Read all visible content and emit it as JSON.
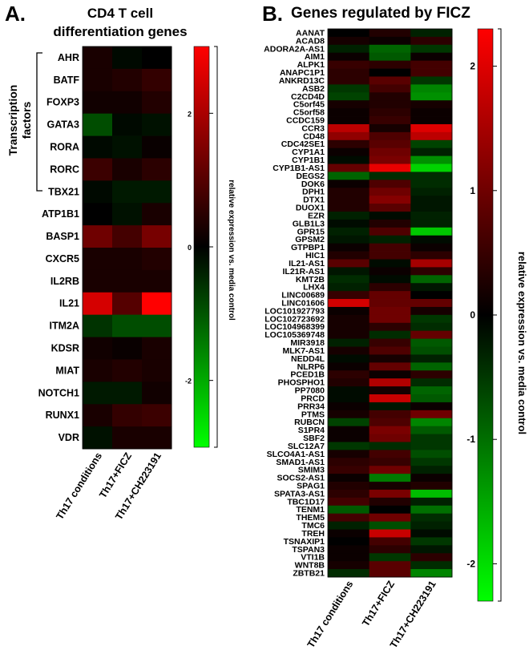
{
  "panel_a": {
    "letter": "A.",
    "title_lines": [
      "CD4 T cell",
      "differentiation genes"
    ],
    "group_label_lines": [
      "Transcription",
      "factors"
    ],
    "colorbar_label": "relative expression vs. media control"
  },
  "panel_b": {
    "letter": "B.",
    "title": "Genes regulated by FICZ",
    "colorbar_label": "relative expression vs. media control"
  },
  "colors": {
    "high": "#ff0000",
    "mid": "#000000",
    "low": "#00ff00"
  },
  "chart_data": [
    {
      "type": "heatmap",
      "title": "CD4 T cell differentiation genes",
      "columns": [
        "Th17 conditions",
        "Th17+FICZ",
        "Th17+CH223191"
      ],
      "rows": [
        "AHR",
        "BATF",
        "FOXP3",
        "GATA3",
        "RORA",
        "RORC",
        "TBX21",
        "ATP1B1",
        "BASP1",
        "CXCR5",
        "IL2RB",
        "IL21",
        "ITM2A",
        "KDSR",
        "MIAT",
        "NOTCH1",
        "RUNX1",
        "VDR"
      ],
      "values": [
        [
          0.3,
          -0.1,
          0.0
        ],
        [
          0.3,
          0.4,
          0.6
        ],
        [
          0.2,
          0.2,
          0.4
        ],
        [
          -0.9,
          -0.1,
          -0.2
        ],
        [
          -0.1,
          -0.2,
          0.1
        ],
        [
          0.7,
          0.3,
          0.5
        ],
        [
          -0.1,
          -0.3,
          -0.3
        ],
        [
          0.0,
          -0.2,
          0.3
        ],
        [
          1.3,
          0.8,
          1.4
        ],
        [
          0.3,
          0.3,
          0.4
        ],
        [
          0.3,
          0.3,
          0.3
        ],
        [
          2.5,
          1.0,
          3.0
        ],
        [
          -0.6,
          -0.9,
          -0.9
        ],
        [
          0.2,
          0.1,
          0.3
        ],
        [
          0.3,
          0.4,
          0.3
        ],
        [
          -0.3,
          -0.3,
          0.2
        ],
        [
          0.3,
          0.6,
          0.7
        ],
        [
          -0.2,
          0.3,
          0.3
        ]
      ],
      "colorbar": {
        "label": "relative expression vs. media control",
        "range": [
          -3,
          3
        ],
        "ticks": [
          2,
          0,
          -2
        ]
      }
    },
    {
      "type": "heatmap",
      "title": "Genes regulated by FICZ",
      "columns": [
        "Th17 conditions",
        "Th17+FICZ",
        "Th17+CH223191"
      ],
      "rows": [
        "AANAT",
        "ACAD8",
        "ADORA2A-AS1",
        "AIM1",
        "ALPK1",
        "ANAPC1P1",
        "ANKRD13C",
        "ASB2",
        "C2CD4D",
        "C5orf45",
        "C5orf58",
        "CCDC159",
        "CCR3",
        "CD48",
        "CDC42SE1",
        "CYP1A1",
        "CYP1B1",
        "CYP1B1-AS1",
        "DEGS2",
        "DOK6",
        "DPH1",
        "DTX1",
        "DUOX1",
        "EZR",
        "GLB1L3",
        "GPR15",
        "GPSM2",
        "GTPBP1",
        "HIC1",
        "IL21-AS1",
        "IL21R-AS1",
        "KMT2B",
        "LHX4",
        "LINC00689",
        "LINC01606",
        "LOC101927793",
        "LOC102723692",
        "LOC104968399",
        "LOC105369748",
        "MIR3918",
        "MLK7-AS1",
        "NEDD4L",
        "NLRP6",
        "PCED1B",
        "PHOSPHO1",
        "PP7080",
        "PRCD",
        "PRR34",
        "PTMS",
        "RUBCN",
        "S1PR4",
        "SBF2",
        "SLC12A7",
        "SLCO4A1-AS1",
        "SMAD1-AS1",
        "SMIM3",
        "SOCS2-AS1",
        "SPAG1",
        "SPATA3-AS1",
        "TBC1D17",
        "TENM1",
        "THEM5",
        "TMC6",
        "TREH",
        "TSNAXIP1",
        "TSPAN3",
        "VTI1B",
        "WNT8B",
        "ZBTB21"
      ],
      "values": [
        [
          0.0,
          0.3,
          -0.3
        ],
        [
          0.2,
          0.1,
          0.4
        ],
        [
          -0.3,
          -0.9,
          -0.5
        ],
        [
          0.1,
          -0.8,
          0.1
        ],
        [
          0.5,
          0.4,
          0.6
        ],
        [
          0.4,
          0.0,
          0.6
        ],
        [
          0.4,
          0.8,
          -0.5
        ],
        [
          -0.5,
          0.6,
          -1.2
        ],
        [
          -0.6,
          0.3,
          -1.3
        ],
        [
          0.2,
          0.3,
          0.2
        ],
        [
          0.1,
          0.4,
          0.1
        ],
        [
          0.1,
          0.5,
          0.1
        ],
        [
          1.7,
          0.2,
          2.0
        ],
        [
          1.3,
          0.7,
          1.7
        ],
        [
          0.4,
          0.8,
          -0.6
        ],
        [
          0.1,
          1.0,
          -0.3
        ],
        [
          -0.1,
          1.1,
          -1.3
        ],
        [
          0.9,
          2.1,
          -1.9
        ],
        [
          -0.9,
          -0.4,
          -0.4
        ],
        [
          0.1,
          0.7,
          -0.4
        ],
        [
          0.3,
          1.0,
          -0.3
        ],
        [
          0.3,
          1.2,
          -0.2
        ],
        [
          0.3,
          0.8,
          -0.2
        ],
        [
          -0.3,
          -0.1,
          -0.3
        ],
        [
          -0.1,
          0.3,
          -0.3
        ],
        [
          -0.3,
          0.7,
          -1.8
        ],
        [
          -0.2,
          -0.3,
          -0.1
        ],
        [
          0.1,
          0.6,
          0.1
        ],
        [
          0.3,
          0.6,
          0.4
        ],
        [
          0.8,
          -0.1,
          1.5
        ],
        [
          -0.2,
          0.1,
          0.4
        ],
        [
          -0.4,
          -0.1,
          -0.9
        ],
        [
          -0.3,
          0.4,
          -0.2
        ],
        [
          0.5,
          0.9,
          0.0
        ],
        [
          1.9,
          0.9,
          0.9
        ],
        [
          0.1,
          1.0,
          0.2
        ],
        [
          0.2,
          1.0,
          -0.5
        ],
        [
          0.2,
          0.4,
          -0.4
        ],
        [
          0.2,
          -0.4,
          0.9
        ],
        [
          -0.3,
          0.5,
          -0.8
        ],
        [
          0.2,
          0.7,
          -0.7
        ],
        [
          -0.1,
          0.2,
          -0.3
        ],
        [
          0.1,
          0.9,
          -0.9
        ],
        [
          0.4,
          0.1,
          0.4
        ],
        [
          0.3,
          1.6,
          -0.4
        ],
        [
          -0.1,
          0.2,
          -0.9
        ],
        [
          -0.1,
          1.8,
          -0.8
        ],
        [
          0.1,
          -0.2,
          0.1
        ],
        [
          0.2,
          0.6,
          1.0
        ],
        [
          -0.6,
          0.7,
          -1.2
        ],
        [
          0.1,
          1.1,
          -0.8
        ],
        [
          0.1,
          1.0,
          -0.5
        ],
        [
          -0.5,
          -0.4,
          -0.5
        ],
        [
          0.2,
          0.6,
          -0.7
        ],
        [
          0.4,
          0.5,
          -0.5
        ],
        [
          0.5,
          1.0,
          -0.3
        ],
        [
          0.1,
          -1.1,
          0.1
        ],
        [
          0.3,
          0.2,
          0.3
        ],
        [
          0.4,
          1.1,
          -1.7
        ],
        [
          0.6,
          0.3,
          -0.3
        ],
        [
          -0.8,
          0.0,
          -1.0
        ],
        [
          0.6,
          1.0,
          -0.4
        ],
        [
          -0.3,
          -0.7,
          -0.3
        ],
        [
          0.1,
          1.8,
          -0.1
        ],
        [
          0.0,
          0.6,
          -0.5
        ],
        [
          0.1,
          0.4,
          -0.2
        ],
        [
          0.1,
          -0.5,
          0.4
        ],
        [
          0.2,
          0.8,
          -0.4
        ],
        [
          -0.4,
          0.8,
          -1.2
        ]
      ],
      "colorbar": {
        "label": "relative expression vs. media control",
        "range": [
          -2.3,
          2.3
        ],
        "ticks": [
          2,
          1,
          0,
          -1,
          -2
        ]
      }
    }
  ]
}
